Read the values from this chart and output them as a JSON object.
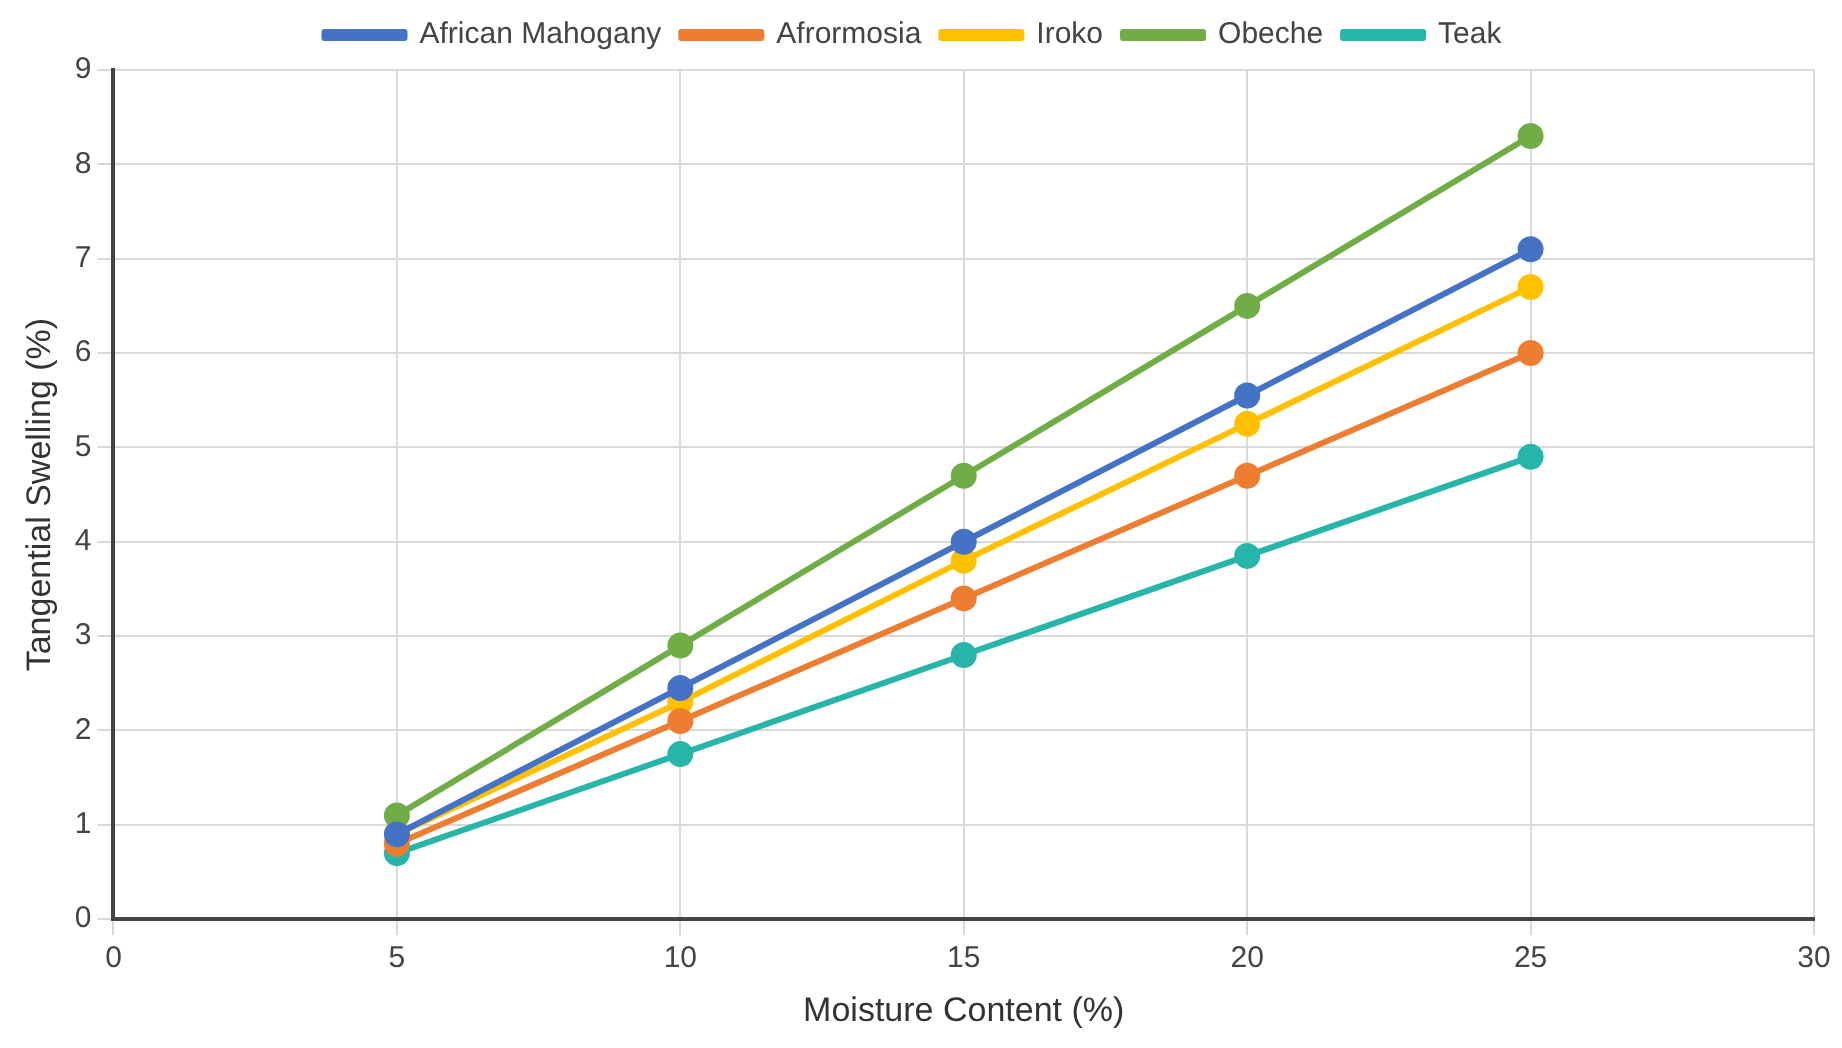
{
  "chart_data": {
    "type": "line",
    "xlabel": "Moisture Content (%)",
    "ylabel": "Tangential Swelling (%)",
    "x": [
      5,
      10,
      15,
      20,
      25
    ],
    "series": [
      {
        "name": "African Mahogany",
        "color": "#4472c4",
        "values": [
          0.9,
          2.45,
          4.0,
          5.55,
          7.1
        ]
      },
      {
        "name": "Afrormosia",
        "color": "#ed7d31",
        "values": [
          0.8,
          2.1,
          3.4,
          4.7,
          6.0
        ]
      },
      {
        "name": "Iroko",
        "color": "#ffc000",
        "values": [
          0.9,
          2.3,
          3.8,
          5.25,
          6.7
        ]
      },
      {
        "name": "Obeche",
        "color": "#70ad47",
        "values": [
          1.1,
          2.9,
          4.7,
          6.5,
          8.3
        ]
      },
      {
        "name": "Teak",
        "color": "#26b5a8",
        "values": [
          0.7,
          1.75,
          2.8,
          3.85,
          4.9
        ]
      }
    ],
    "xlim": [
      0,
      30
    ],
    "xticks": [
      0,
      5,
      10,
      15,
      20,
      25,
      30
    ],
    "ylim": [
      0,
      9
    ],
    "yticks": [
      0,
      1,
      2,
      3,
      4,
      5,
      6,
      7,
      8,
      9
    ],
    "grid": true,
    "legend": "top",
    "marker": "circle",
    "line_style": "solid"
  }
}
